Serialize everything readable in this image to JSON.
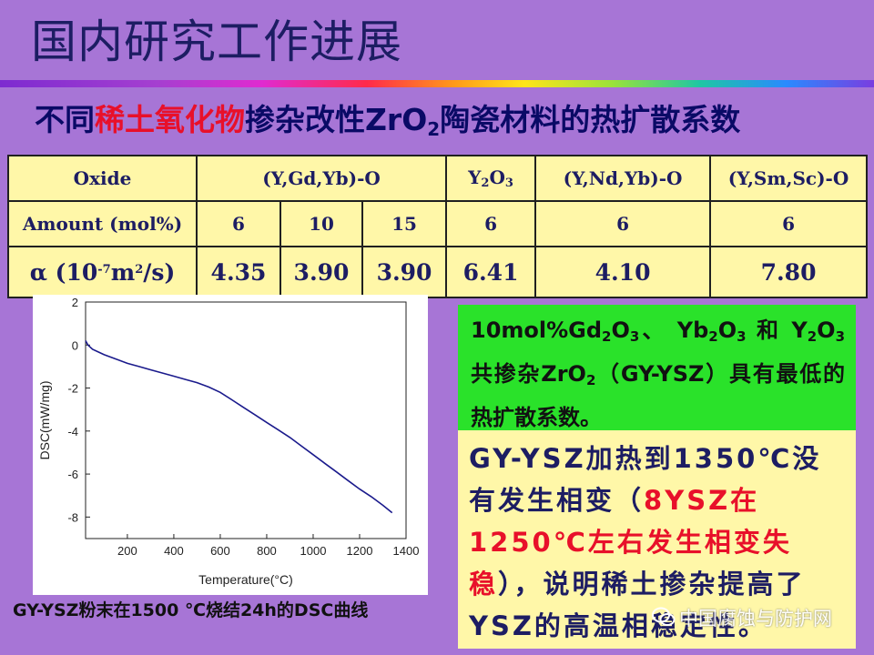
{
  "title": "国内研究工作进展",
  "subtitle": {
    "pre": "不同",
    "highlight": "稀土氧化物",
    "post1": "掺杂改性ZrO",
    "sub": "2",
    "post2": "陶瓷材料的热扩散系数"
  },
  "table": {
    "oxide_label": "Oxide",
    "amount_label": "Amount (mol%)",
    "alpha_label": {
      "a": "α (10",
      "exp": "-7",
      "b": "m",
      "exp2": "2",
      "c": "/s)"
    },
    "oxides": {
      "gdyb": "(Y,Gd,Yb)-O",
      "y2o3": {
        "a": "Y",
        "s1": "2",
        "b": "O",
        "s2": "3"
      },
      "ndyb": "(Y,Nd,Yb)-O",
      "smsc": "(Y,Sm,Sc)-O"
    },
    "amounts": [
      "6",
      "10",
      "15",
      "6",
      "6",
      "6"
    ],
    "alphas": [
      "4.35",
      "3.90",
      "3.90",
      "6.41",
      "4.10",
      "7.80"
    ]
  },
  "chart_data": {
    "type": "line",
    "xlabel": "Temperature(°C)",
    "ylabel": "DSC(mW/mg)",
    "xlim": [
      20,
      1400
    ],
    "ylim": [
      -9,
      2
    ],
    "xticks": [
      200,
      400,
      600,
      800,
      1000,
      1200,
      1400
    ],
    "yticks": [
      2,
      0,
      -2,
      -4,
      -6,
      -8
    ],
    "grid": false,
    "series": [
      {
        "color": "#1a1a8c",
        "x": [
          20,
          30,
          50,
          80,
          100,
          150,
          200,
          250,
          300,
          350,
          400,
          450,
          500,
          550,
          600,
          650,
          700,
          750,
          800,
          850,
          900,
          950,
          1000,
          1050,
          1100,
          1150,
          1200,
          1250,
          1300,
          1340
        ],
        "y": [
          0.2,
          0.0,
          -0.2,
          -0.35,
          -0.45,
          -0.65,
          -0.85,
          -1.0,
          -1.15,
          -1.3,
          -1.45,
          -1.6,
          -1.75,
          -1.95,
          -2.2,
          -2.55,
          -2.9,
          -3.25,
          -3.6,
          -3.95,
          -4.3,
          -4.7,
          -5.1,
          -5.5,
          -5.9,
          -6.3,
          -6.7,
          -7.05,
          -7.45,
          -7.8
        ]
      }
    ]
  },
  "caption": "GY-YSZ粉末在1500 ℃烧结24h的DSC曲线",
  "green_box": {
    "t1": "10mol%Gd",
    "s1": "2",
    "t2": "O",
    "s2": "3",
    "t3": "、 Yb",
    "s3": "2",
    "t4": "O",
    "s4": "3",
    "t5": " 和 Y",
    "s5": "2",
    "t6": "O",
    "s6": "3",
    "t7": "共掺杂ZrO",
    "s7": "2",
    "t8": "（GY-YSZ）具有最低的热扩散系数。"
  },
  "yellow_box": {
    "t1": "GY-YSZ加热到1350℃没有发生相变（",
    "red": "8YSZ在1250℃左右发生相变失稳",
    "t2": "），说明稀土掺杂提高了YSZ的高温相稳定性。"
  },
  "watermark": "中国腐蚀与防护网",
  "colors": {
    "background": "#a775d6",
    "title": "#1d1d63",
    "highlight": "#e8102a",
    "table_bg": "#fff7a8",
    "green": "#2ae22a",
    "curve": "#1a1a8c"
  }
}
